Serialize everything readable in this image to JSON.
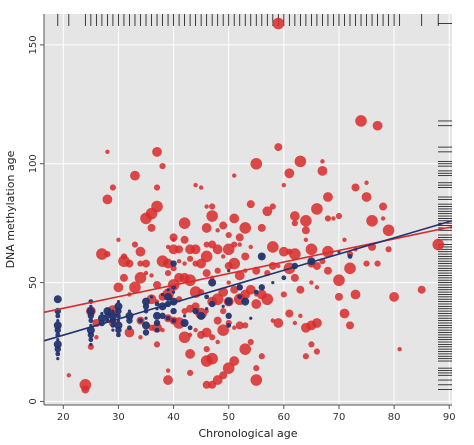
{
  "chart_data": {
    "type": "scatter",
    "title": "",
    "xlabel": "Chronological age",
    "ylabel": "DNA methylation age",
    "xlim": [
      16.5,
      90.5
    ],
    "ylim": [
      -1.5,
      163
    ],
    "x_ticks": [
      20,
      30,
      40,
      50,
      60,
      70,
      80,
      90
    ],
    "y_ticks": [
      0,
      50,
      100,
      150
    ],
    "grid": true,
    "legend": "none",
    "background": "#e5e5e5",
    "marginal_rugs": [
      "top (x values)",
      "right (y values)"
    ],
    "series": [
      {
        "color": "#d92b2b",
        "points": [
          [
            21,
            11
          ],
          [
            24,
            5
          ],
          [
            24,
            7
          ],
          [
            25,
            23
          ],
          [
            25,
            38
          ],
          [
            26,
            27
          ],
          [
            26,
            33
          ],
          [
            27,
            62
          ],
          [
            28,
            62
          ],
          [
            28,
            85
          ],
          [
            28,
            105
          ],
          [
            29,
            33
          ],
          [
            29,
            38
          ],
          [
            29,
            90
          ],
          [
            30,
            48
          ],
          [
            30,
            68
          ],
          [
            31,
            52
          ],
          [
            31,
            59
          ],
          [
            31,
            61
          ],
          [
            32,
            29
          ],
          [
            32,
            45
          ],
          [
            32,
            58
          ],
          [
            33,
            48
          ],
          [
            33,
            66
          ],
          [
            33,
            95
          ],
          [
            34,
            27
          ],
          [
            34,
            34
          ],
          [
            34,
            52
          ],
          [
            34,
            58
          ],
          [
            34,
            63
          ],
          [
            35,
            54
          ],
          [
            35,
            58
          ],
          [
            35,
            77
          ],
          [
            36,
            31
          ],
          [
            36,
            43
          ],
          [
            36,
            53
          ],
          [
            36,
            73
          ],
          [
            36,
            79
          ],
          [
            37,
            24
          ],
          [
            37,
            31
          ],
          [
            37,
            42
          ],
          [
            37,
            49
          ],
          [
            37,
            82
          ],
          [
            37,
            90
          ],
          [
            37,
            105
          ],
          [
            38,
            30
          ],
          [
            38,
            44
          ],
          [
            38,
            59
          ],
          [
            38,
            99
          ],
          [
            39,
            9
          ],
          [
            39,
            13
          ],
          [
            39,
            35
          ],
          [
            39,
            45
          ],
          [
            39,
            54
          ],
          [
            39,
            58
          ],
          [
            39,
            65
          ],
          [
            40,
            34
          ],
          [
            40,
            49
          ],
          [
            40,
            56
          ],
          [
            40,
            64
          ],
          [
            40,
            68
          ],
          [
            40,
            69
          ],
          [
            41,
            33
          ],
          [
            41,
            43
          ],
          [
            41,
            52
          ],
          [
            41,
            59
          ],
          [
            41,
            64
          ],
          [
            42,
            27
          ],
          [
            42,
            38
          ],
          [
            42,
            52
          ],
          [
            42,
            58
          ],
          [
            42,
            68
          ],
          [
            42,
            75
          ],
          [
            43,
            12
          ],
          [
            43,
            20
          ],
          [
            43,
            28
          ],
          [
            43,
            39
          ],
          [
            43,
            51
          ],
          [
            43,
            60
          ],
          [
            43,
            64
          ],
          [
            44,
            30
          ],
          [
            44,
            40
          ],
          [
            44,
            46
          ],
          [
            44,
            58
          ],
          [
            44,
            64
          ],
          [
            44,
            91
          ],
          [
            45,
            28
          ],
          [
            45,
            37
          ],
          [
            45,
            46
          ],
          [
            45,
            58
          ],
          [
            45,
            90
          ],
          [
            46,
            7
          ],
          [
            46,
            17
          ],
          [
            46,
            22
          ],
          [
            46,
            29
          ],
          [
            46,
            38
          ],
          [
            46,
            54
          ],
          [
            46,
            61
          ],
          [
            46,
            66
          ],
          [
            46,
            73
          ],
          [
            46,
            82
          ],
          [
            47,
            7
          ],
          [
            47,
            18
          ],
          [
            47,
            27
          ],
          [
            47,
            42
          ],
          [
            47,
            52
          ],
          [
            47,
            66
          ],
          [
            47,
            78
          ],
          [
            47,
            82
          ],
          [
            48,
            9
          ],
          [
            48,
            25
          ],
          [
            48,
            34
          ],
          [
            48,
            43
          ],
          [
            48,
            55
          ],
          [
            48,
            64
          ],
          [
            48,
            72
          ],
          [
            49,
            11
          ],
          [
            49,
            30
          ],
          [
            49,
            38
          ],
          [
            49,
            46
          ],
          [
            49,
            61
          ],
          [
            49,
            74
          ],
          [
            50,
            14
          ],
          [
            50,
            33
          ],
          [
            50,
            42
          ],
          [
            50,
            50
          ],
          [
            50,
            57
          ],
          [
            50,
            64
          ],
          [
            50,
            70
          ],
          [
            51,
            17
          ],
          [
            51,
            31
          ],
          [
            51,
            47
          ],
          [
            51,
            58
          ],
          [
            51,
            66
          ],
          [
            51,
            77
          ],
          [
            51,
            95
          ],
          [
            52,
            32
          ],
          [
            52,
            43
          ],
          [
            52,
            48
          ],
          [
            52,
            53
          ],
          [
            52,
            66
          ],
          [
            52,
            69
          ],
          [
            53,
            22
          ],
          [
            53,
            32
          ],
          [
            53,
            45
          ],
          [
            53,
            55
          ],
          [
            53,
            61
          ],
          [
            53,
            73
          ],
          [
            54,
            25
          ],
          [
            54,
            47
          ],
          [
            54,
            65
          ],
          [
            54,
            83
          ],
          [
            55,
            9
          ],
          [
            55,
            14
          ],
          [
            55,
            41
          ],
          [
            55,
            45
          ],
          [
            55,
            55
          ],
          [
            55,
            100
          ],
          [
            56,
            19
          ],
          [
            56,
            45
          ],
          [
            56,
            61
          ],
          [
            56,
            73
          ],
          [
            57,
            43
          ],
          [
            57,
            54
          ],
          [
            57,
            80
          ],
          [
            58,
            34
          ],
          [
            58,
            57
          ],
          [
            58,
            65
          ],
          [
            58,
            82
          ],
          [
            59,
            33
          ],
          [
            59,
            57
          ],
          [
            59,
            107
          ],
          [
            59,
            159
          ],
          [
            60,
            45
          ],
          [
            60,
            63
          ],
          [
            60,
            91
          ],
          [
            61,
            37
          ],
          [
            61,
            56
          ],
          [
            61,
            63
          ],
          [
            61,
            96
          ],
          [
            62,
            33
          ],
          [
            62,
            52
          ],
          [
            62,
            62
          ],
          [
            62,
            75
          ],
          [
            62,
            78
          ],
          [
            63,
            36
          ],
          [
            63,
            47
          ],
          [
            63,
            101
          ],
          [
            64,
            19
          ],
          [
            64,
            31
          ],
          [
            64,
            68
          ],
          [
            64,
            72
          ],
          [
            64,
            76
          ],
          [
            65,
            24
          ],
          [
            65,
            32
          ],
          [
            65,
            50
          ],
          [
            65,
            58
          ],
          [
            65,
            64
          ],
          [
            66,
            21
          ],
          [
            66,
            33
          ],
          [
            66,
            48
          ],
          [
            66,
            57
          ],
          [
            66,
            81
          ],
          [
            67,
            59
          ],
          [
            67,
            97
          ],
          [
            67,
            101
          ],
          [
            68,
            55
          ],
          [
            68,
            63
          ],
          [
            68,
            77
          ],
          [
            68,
            86
          ],
          [
            69,
            77
          ],
          [
            70,
            44
          ],
          [
            70,
            51
          ],
          [
            70,
            78
          ],
          [
            71,
            37
          ],
          [
            71,
            68
          ],
          [
            72,
            32
          ],
          [
            72,
            56
          ],
          [
            72,
            62
          ],
          [
            73,
            45
          ],
          [
            73,
            64
          ],
          [
            73,
            90
          ],
          [
            74,
            118
          ],
          [
            75,
            58
          ],
          [
            75,
            86
          ],
          [
            75,
            92
          ],
          [
            76,
            65
          ],
          [
            76,
            76
          ],
          [
            77,
            58
          ],
          [
            77,
            116
          ],
          [
            78,
            77
          ],
          [
            78,
            82
          ],
          [
            79,
            72
          ],
          [
            79,
            64
          ],
          [
            80,
            44
          ],
          [
            81,
            22
          ],
          [
            85,
            47
          ],
          [
            88,
            66
          ]
        ]
      },
      {
        "color": "#223470",
        "points": [
          [
            19,
            18
          ],
          [
            19,
            20
          ],
          [
            19,
            22
          ],
          [
            19,
            24
          ],
          [
            19,
            26
          ],
          [
            19,
            28
          ],
          [
            19,
            30
          ],
          [
            19,
            32
          ],
          [
            19,
            34
          ],
          [
            19,
            36
          ],
          [
            19,
            38
          ],
          [
            19,
            43
          ],
          [
            25,
            24
          ],
          [
            25,
            26
          ],
          [
            25,
            28
          ],
          [
            25,
            30
          ],
          [
            25,
            32
          ],
          [
            25,
            34
          ],
          [
            25,
            36
          ],
          [
            25,
            38
          ],
          [
            25,
            40
          ],
          [
            25,
            42
          ],
          [
            27,
            33
          ],
          [
            27,
            35
          ],
          [
            27,
            37
          ],
          [
            28,
            34
          ],
          [
            28,
            36
          ],
          [
            28,
            38
          ],
          [
            29,
            30
          ],
          [
            29,
            32
          ],
          [
            29,
            34
          ],
          [
            29,
            36
          ],
          [
            29,
            38
          ],
          [
            30,
            28
          ],
          [
            30,
            30
          ],
          [
            30,
            32
          ],
          [
            30,
            34
          ],
          [
            30,
            36
          ],
          [
            30,
            38
          ],
          [
            30,
            40
          ],
          [
            30,
            42
          ],
          [
            32,
            31
          ],
          [
            32,
            34
          ],
          [
            32,
            36
          ],
          [
            32,
            38
          ],
          [
            34,
            34
          ],
          [
            35,
            29
          ],
          [
            35,
            32
          ],
          [
            35,
            35
          ],
          [
            35,
            38
          ],
          [
            35,
            40
          ],
          [
            35,
            42
          ],
          [
            36,
            44
          ],
          [
            37,
            30
          ],
          [
            37,
            33
          ],
          [
            37,
            36
          ],
          [
            37,
            39
          ],
          [
            37,
            41
          ],
          [
            38,
            36
          ],
          [
            38,
            40
          ],
          [
            38,
            45
          ],
          [
            39,
            35
          ],
          [
            39,
            41
          ],
          [
            39,
            44
          ],
          [
            39,
            47
          ],
          [
            40,
            34
          ],
          [
            40,
            38
          ],
          [
            40,
            42
          ],
          [
            40,
            46
          ],
          [
            40,
            48
          ],
          [
            40,
            58
          ],
          [
            42,
            33
          ],
          [
            42,
            36
          ],
          [
            43,
            31
          ],
          [
            44,
            38
          ],
          [
            45,
            36
          ],
          [
            46,
            39
          ],
          [
            46,
            44
          ],
          [
            47,
            41
          ],
          [
            47,
            50
          ],
          [
            49,
            40
          ],
          [
            50,
            32
          ],
          [
            50,
            36
          ],
          [
            50,
            42
          ],
          [
            50,
            55
          ],
          [
            52,
            44
          ],
          [
            52,
            48
          ],
          [
            53,
            42
          ],
          [
            54,
            35
          ],
          [
            55,
            46
          ],
          [
            56,
            48
          ],
          [
            56,
            61
          ],
          [
            58,
            50
          ],
          [
            60,
            52
          ],
          [
            62,
            57
          ],
          [
            65,
            59
          ],
          [
            70,
            63
          ],
          [
            72,
            61
          ]
        ]
      }
    ],
    "trend_lines": [
      {
        "color": "#d92b2b",
        "from": [
          16.5,
          37.5
        ],
        "to": [
          90.5,
          73.5
        ]
      },
      {
        "color": "#223470",
        "from": [
          16.5,
          25.5
        ],
        "to": [
          90.5,
          76.0
        ]
      }
    ]
  }
}
